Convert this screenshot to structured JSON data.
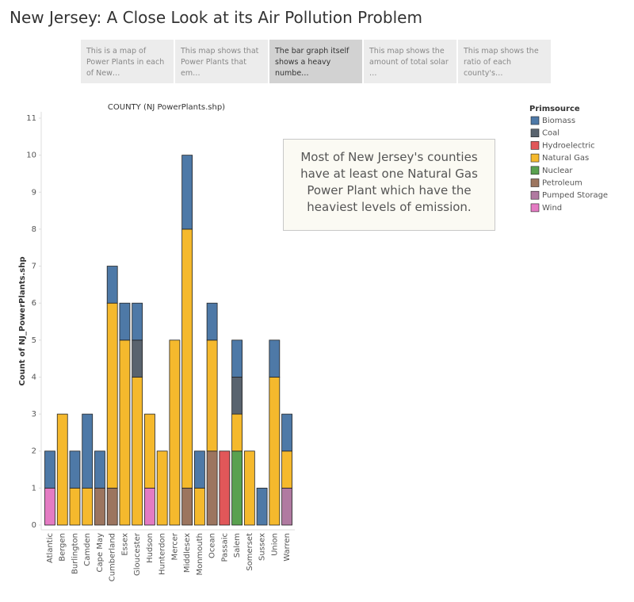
{
  "header": {
    "title": "New Jersey: A Close Look at its Air Pollution Problem"
  },
  "story_points": [
    "This is a map of Power Plants in each of New…",
    "This map shows that Power Plants that em…",
    "The bar graph itself shows a heavy numbe…",
    "This map shows the amount of total solar …",
    "This map shows the ratio of each county's…"
  ],
  "chart_data": {
    "type": "stacked_bar",
    "title": "COUNTY (NJ PowerPlants.shp)",
    "y_label": "Count of NJ_PowerPlants.shp",
    "annotation": "Most of New Jersey's counties have at least one Natural Gas Power Plant which have the heaviest levels of emission.",
    "legend_title": "Primsource",
    "categories": [
      "Atlantic",
      "Bergen",
      "Burlington",
      "Camden",
      "Cape May",
      "Cumberland",
      "Essex",
      "Gloucester",
      "Hudson",
      "Hunterdon",
      "Mercer",
      "Middlesex",
      "Monmouth",
      "Ocean",
      "Passaic",
      "Salem",
      "Somerset",
      "Sussex",
      "Union",
      "Warren"
    ],
    "series": [
      {
        "name": "Biomass",
        "color": "#4e79a7",
        "values": [
          1,
          0,
          1,
          2,
          1,
          1,
          1,
          1,
          0,
          0,
          0,
          2,
          1,
          1,
          0,
          1,
          0,
          1,
          1,
          1
        ]
      },
      {
        "name": "Coal",
        "color": "#59636e",
        "values": [
          0,
          0,
          0,
          0,
          0,
          0,
          0,
          1,
          0,
          0,
          0,
          0,
          0,
          0,
          0,
          1,
          0,
          0,
          0,
          0
        ]
      },
      {
        "name": "Hydroelectric",
        "color": "#e15759",
        "values": [
          0,
          0,
          0,
          0,
          0,
          0,
          0,
          0,
          0,
          0,
          0,
          0,
          0,
          0,
          2,
          0,
          0,
          0,
          0,
          0
        ]
      },
      {
        "name": "Natural Gas",
        "color": "#f5b92d",
        "values": [
          0,
          3,
          1,
          1,
          0,
          5,
          5,
          4,
          2,
          2,
          5,
          7,
          1,
          3,
          0,
          1,
          2,
          0,
          4,
          1
        ]
      },
      {
        "name": "Nuclear",
        "color": "#59a14f",
        "values": [
          0,
          0,
          0,
          0,
          0,
          0,
          0,
          0,
          0,
          0,
          0,
          0,
          0,
          0,
          0,
          2,
          0,
          0,
          0,
          0
        ]
      },
      {
        "name": "Petroleum",
        "color": "#9c755f",
        "values": [
          0,
          0,
          0,
          0,
          1,
          1,
          0,
          0,
          0,
          0,
          0,
          1,
          0,
          2,
          0,
          0,
          0,
          0,
          0,
          0
        ]
      },
      {
        "name": "Pumped Storage",
        "color": "#b07aa1",
        "values": [
          0,
          0,
          0,
          0,
          0,
          0,
          0,
          0,
          0,
          0,
          0,
          0,
          0,
          0,
          0,
          0,
          0,
          0,
          0,
          1
        ]
      },
      {
        "name": "Wind",
        "color": "#e47bc3",
        "values": [
          1,
          0,
          0,
          0,
          0,
          0,
          0,
          0,
          1,
          0,
          0,
          0,
          0,
          0,
          0,
          0,
          0,
          0,
          0,
          0
        ]
      }
    ],
    "ylim": [
      0,
      11
    ],
    "yticks": [
      0,
      1,
      2,
      3,
      4,
      5,
      6,
      7,
      8,
      9,
      10,
      11
    ]
  }
}
